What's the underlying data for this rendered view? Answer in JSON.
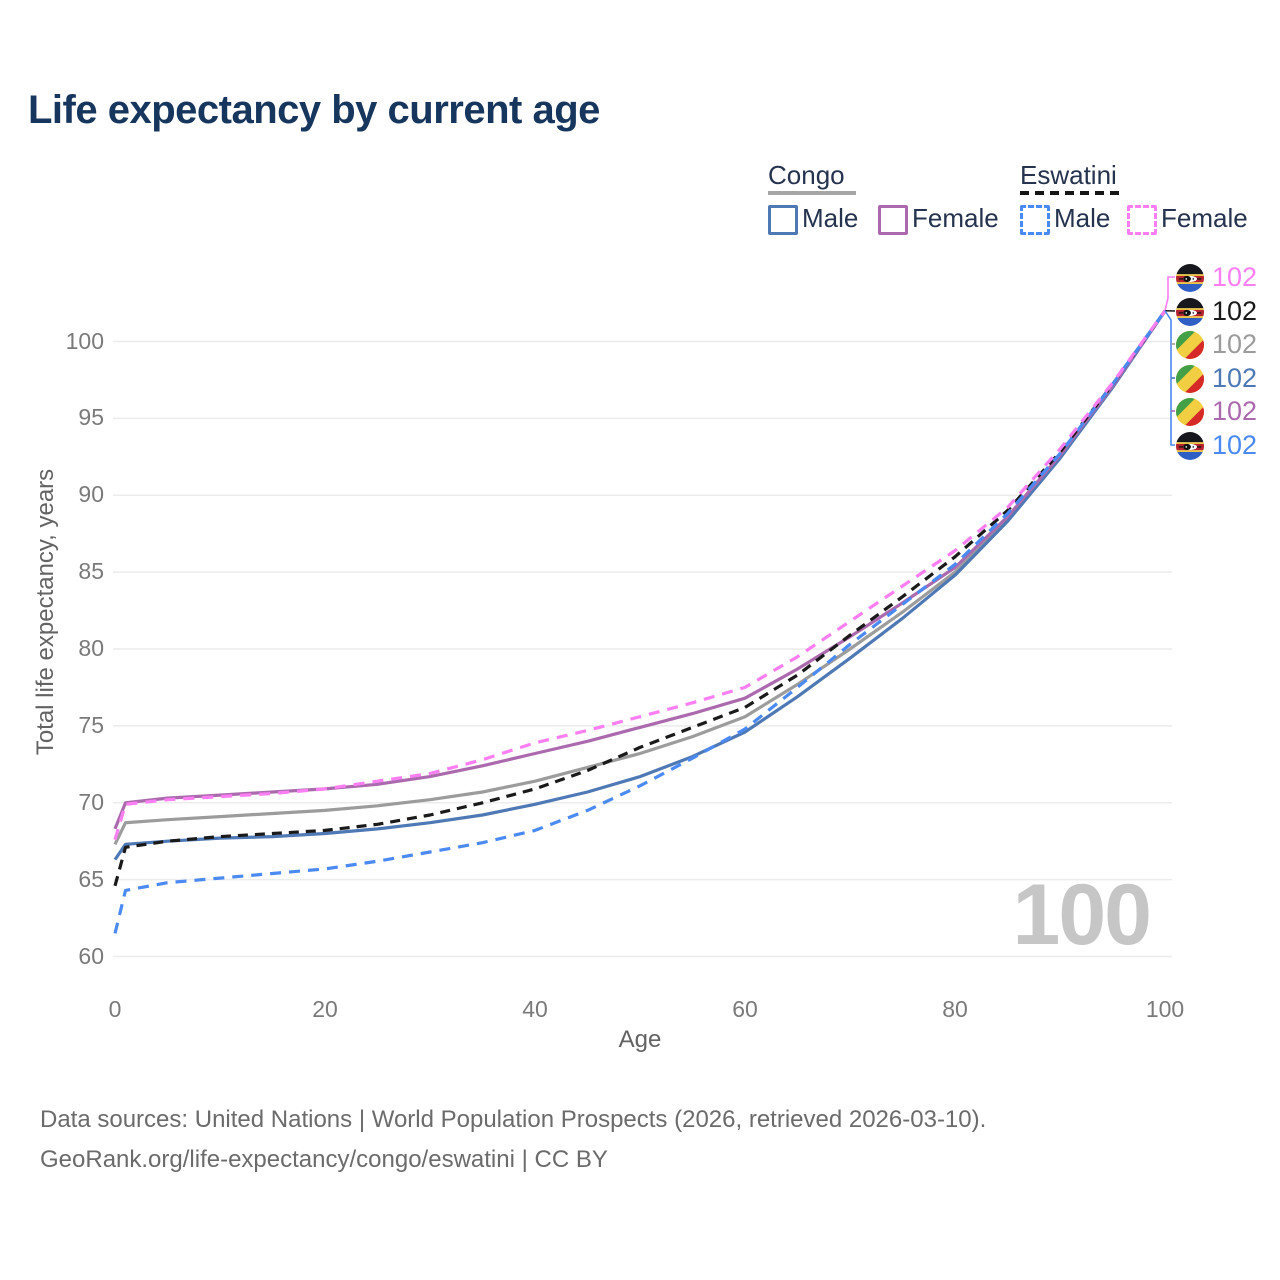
{
  "title": "Life expectancy by current age",
  "legend": {
    "congo": {
      "title": "Congo",
      "male_label": "Male",
      "female_label": "Female"
    },
    "eswatini": {
      "title": "Eswatini",
      "male_label": "Male",
      "female_label": "Female"
    }
  },
  "watermark": "100",
  "footer": {
    "line1": "Data sources: United Nations | World Population Prospects (2026, retrieved 2026-03-10).",
    "line2": "GeoRank.org/life-expectancy/congo/eswatini | CC BY"
  },
  "colors": {
    "title_text": "#17365d",
    "legend_text": "#25334e",
    "congo_male": "#4e79b5",
    "congo_female": "#ac6aae",
    "congo_both": "#9c9c9c",
    "esw_male": "#4b8af2",
    "esw_female": "#fb7ef2",
    "esw_both": "#1a1a1a",
    "gridline": "#ececec",
    "axis_text": "#7a7a7a",
    "watermark_text": "#c6c6c6"
  },
  "chart_data": {
    "type": "line",
    "title": "Life expectancy by current age",
    "xlabel": "Age",
    "ylabel": "Total life expectancy, years",
    "xlim": [
      0,
      100
    ],
    "ylim": [
      60,
      100
    ],
    "x_ticks": [
      0,
      20,
      40,
      60,
      80,
      100
    ],
    "y_ticks": [
      60,
      65,
      70,
      75,
      80,
      85,
      90,
      95,
      100
    ],
    "grid": true,
    "legend_position": "top-right",
    "ages": [
      0,
      1,
      5,
      10,
      15,
      20,
      25,
      30,
      35,
      40,
      45,
      50,
      55,
      60,
      65,
      70,
      75,
      80,
      85,
      90,
      95,
      100
    ],
    "series": [
      {
        "name": "Congo Both sexes",
        "country": "Congo",
        "sex": "Both",
        "style": "solid",
        "color_key": "congo_both",
        "end_label": "102",
        "values": [
          67.3,
          68.7,
          68.9,
          69.1,
          69.3,
          69.5,
          69.8,
          70.2,
          70.7,
          71.4,
          72.3,
          73.2,
          74.3,
          75.6,
          77.7,
          80.0,
          82.4,
          85.0,
          88.4,
          92.5,
          97.0,
          102
        ]
      },
      {
        "name": "Congo Male",
        "country": "Congo",
        "sex": "Male",
        "style": "solid",
        "color_key": "congo_male",
        "end_label": "102",
        "values": [
          66.3,
          67.3,
          67.5,
          67.7,
          67.8,
          68.0,
          68.3,
          68.7,
          69.2,
          69.9,
          70.7,
          71.7,
          73.0,
          74.6,
          76.9,
          79.4,
          82.0,
          84.8,
          88.3,
          92.4,
          97.0,
          102
        ]
      },
      {
        "name": "Congo Female",
        "country": "Congo",
        "sex": "Female",
        "style": "solid",
        "color_key": "congo_female",
        "end_label": "102",
        "values": [
          68.3,
          70.0,
          70.3,
          70.5,
          70.7,
          70.9,
          71.2,
          71.7,
          72.4,
          73.2,
          74.0,
          74.9,
          75.8,
          76.8,
          78.7,
          80.8,
          83.0,
          85.3,
          88.6,
          92.6,
          97.1,
          102
        ]
      },
      {
        "name": "Eswatini Both sexes",
        "country": "Eswatini",
        "sex": "Both",
        "style": "dashed",
        "color_key": "esw_both",
        "end_label": "102",
        "values": [
          64.6,
          67.1,
          67.5,
          67.8,
          68.0,
          68.2,
          68.6,
          69.2,
          70.0,
          70.9,
          72.1,
          73.6,
          74.9,
          76.2,
          78.3,
          80.9,
          83.4,
          86.0,
          89.0,
          92.8,
          97.2,
          102
        ]
      },
      {
        "name": "Eswatini Male",
        "country": "Eswatini",
        "sex": "Male",
        "style": "dashed",
        "color_key": "esw_male",
        "end_label": "102",
        "values": [
          61.5,
          64.3,
          64.8,
          65.1,
          65.4,
          65.7,
          66.2,
          66.8,
          67.4,
          68.2,
          69.5,
          71.1,
          72.9,
          74.8,
          77.5,
          80.3,
          82.9,
          85.5,
          88.8,
          92.7,
          97.2,
          102
        ]
      },
      {
        "name": "Eswatini Female",
        "country": "Eswatini",
        "sex": "Female",
        "style": "dashed",
        "color_key": "esw_female",
        "end_label": "102",
        "values": [
          67.6,
          69.9,
          70.2,
          70.4,
          70.6,
          70.9,
          71.4,
          71.9,
          72.8,
          73.9,
          74.7,
          75.6,
          76.5,
          77.5,
          79.5,
          81.8,
          84.1,
          86.4,
          89.2,
          93.0,
          97.3,
          102
        ]
      }
    ]
  },
  "end_labels": [
    {
      "flag": "eswatini-flag-icon",
      "value": "102",
      "color_key": "esw_female"
    },
    {
      "flag": "eswatini-flag-icon",
      "value": "102",
      "color_key": "esw_both"
    },
    {
      "flag": "congo-flag-icon",
      "value": "102",
      "color_key": "congo_both"
    },
    {
      "flag": "congo-flag-icon",
      "value": "102",
      "color_key": "congo_male"
    },
    {
      "flag": "congo-flag-icon",
      "value": "102",
      "color_key": "congo_female"
    },
    {
      "flag": "eswatini-flag-icon",
      "value": "102",
      "color_key": "esw_male"
    }
  ]
}
